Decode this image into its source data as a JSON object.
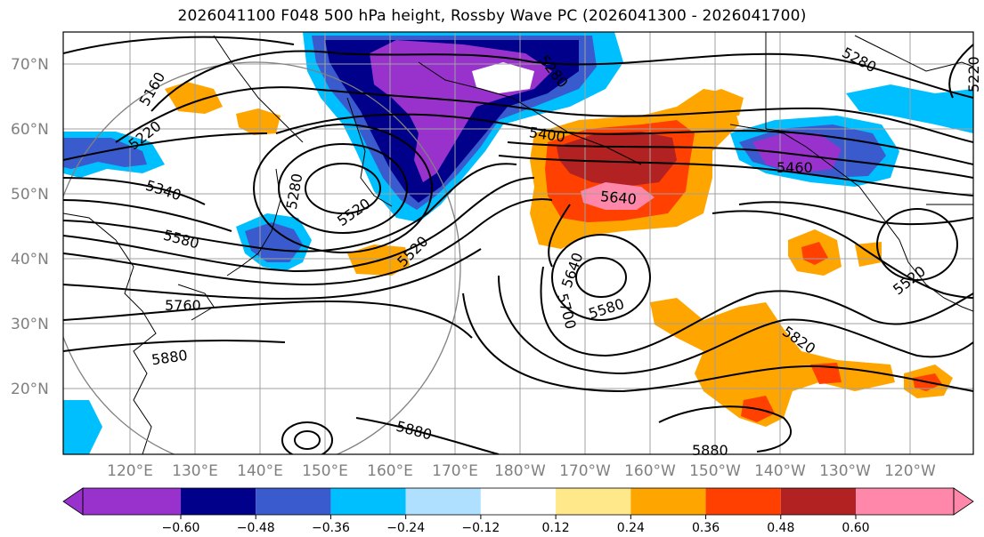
{
  "title": "2026041100 F048 500 hPa height, Rossby Wave PC (2026041300 - 2026041700)",
  "lat_labels": [
    "70°N",
    "60°N",
    "50°N",
    "40°N",
    "30°N",
    "20°N"
  ],
  "lon_labels": [
    "120°E",
    "130°E",
    "140°E",
    "150°E",
    "160°E",
    "170°E",
    "180°W",
    "170°W",
    "160°W",
    "150°W",
    "140°W",
    "130°W",
    "120°W"
  ],
  "contour_labels": [
    "5160",
    "5220",
    "5280",
    "5280",
    "5340",
    "5400",
    "5460",
    "5520",
    "5520",
    "5520",
    "5580",
    "5580",
    "5640",
    "5640",
    "5700",
    "5760",
    "5820",
    "5880",
    "5880",
    "5880",
    "5280",
    "5220"
  ],
  "colorbar": {
    "ticks": [
      "−0.60",
      "−0.48",
      "−0.36",
      "−0.24",
      "−0.12",
      "0.12",
      "0.24",
      "0.36",
      "0.48",
      "0.60"
    ],
    "colors": [
      "#9932cc",
      "#00008b",
      "#3a5bcd",
      "#00bfff",
      "#b0e0ff",
      "#ffffff",
      "#ffe88a",
      "#ffa500",
      "#ff4000",
      "#b22222",
      "#ff88aa"
    ]
  },
  "colors": {
    "neg_strong": "#9932cc",
    "neg_dark": "#00008b",
    "neg_mid": "#3a5bcd",
    "neg_light": "#00bfff",
    "neg_pale": "#b0e0ff",
    "pos_pale": "#ffe88a",
    "pos_mid": "#ffa500",
    "pos_strong": "#ff4000",
    "pos_dark": "#b22222",
    "pos_max": "#ff88aa"
  }
}
